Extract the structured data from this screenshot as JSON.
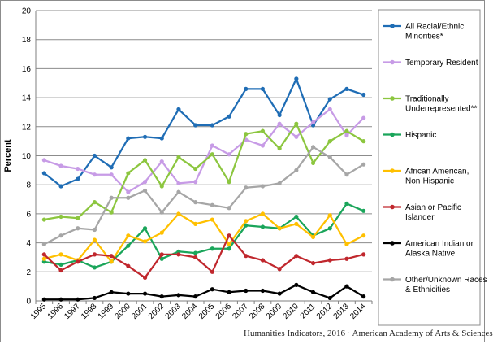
{
  "source_note": "Humanities Indicators, 2016 · American Academy of Arts & Sciences",
  "chart_data": {
    "type": "line",
    "title": "",
    "xlabel": "",
    "ylabel": "Percent",
    "ylim": [
      0,
      20
    ],
    "yticks": [
      0,
      2,
      4,
      6,
      8,
      10,
      12,
      14,
      16,
      18,
      20
    ],
    "grid": true,
    "legend_position": "right",
    "x": [
      "1995",
      "1996",
      "1997",
      "1998",
      "1999",
      "2000",
      "2001",
      "2002",
      "2003",
      "2004",
      "2005",
      "2006",
      "2007",
      "2008",
      "2009",
      "2010",
      "2011",
      "2012",
      "2013",
      "2014"
    ],
    "series": [
      {
        "name": "All Racial/Ethnic Minorities*",
        "color": "#1f6db5",
        "values": [
          8.8,
          7.9,
          8.4,
          10.0,
          9.2,
          11.2,
          11.3,
          11.2,
          13.2,
          12.1,
          12.1,
          12.7,
          14.6,
          14.6,
          12.8,
          15.3,
          12.1,
          13.9,
          14.6,
          14.2
        ]
      },
      {
        "name": "Temporary Resident",
        "color": "#c79be6",
        "values": [
          9.7,
          9.3,
          9.1,
          8.7,
          8.7,
          7.5,
          8.2,
          9.6,
          8.1,
          8.2,
          10.7,
          10.1,
          11.1,
          10.7,
          12.2,
          11.3,
          12.3,
          13.2,
          11.4,
          12.6
        ]
      },
      {
        "name": "Traditionally Underrepresented**",
        "color": "#8cc63f",
        "values": [
          5.6,
          5.8,
          5.7,
          6.8,
          6.1,
          8.8,
          9.7,
          7.9,
          9.9,
          9.1,
          10.1,
          8.2,
          11.5,
          11.7,
          10.5,
          12.2,
          9.5,
          11.0,
          11.7,
          11.0
        ]
      },
      {
        "name": "Hispanic",
        "color": "#1aa55a",
        "values": [
          2.7,
          2.5,
          2.8,
          2.3,
          2.7,
          3.8,
          5.0,
          2.9,
          3.4,
          3.3,
          3.6,
          3.6,
          5.2,
          5.1,
          5.0,
          5.8,
          4.5,
          5.0,
          6.7,
          6.2
        ]
      },
      {
        "name": "African American, Non-Hispanic",
        "color": "#ffc000",
        "values": [
          2.9,
          3.2,
          2.8,
          4.2,
          2.7,
          4.5,
          4.1,
          4.7,
          6.0,
          5.3,
          5.6,
          3.9,
          5.5,
          6.0,
          5.0,
          5.3,
          4.4,
          5.9,
          3.9,
          4.5
        ]
      },
      {
        "name": "Asian or Pacific Islander",
        "color": "#c0272d",
        "values": [
          3.2,
          2.1,
          2.7,
          3.2,
          3.1,
          2.4,
          1.6,
          3.2,
          3.2,
          3.0,
          2.0,
          4.5,
          3.1,
          2.8,
          2.2,
          3.1,
          2.6,
          2.8,
          2.9,
          3.2
        ]
      },
      {
        "name": "American Indian or Alaska Native",
        "color": "#000000",
        "values": [
          0.1,
          0.1,
          0.1,
          0.2,
          0.6,
          0.5,
          0.5,
          0.3,
          0.4,
          0.3,
          0.8,
          0.6,
          0.7,
          0.7,
          0.5,
          1.1,
          0.6,
          0.2,
          1.0,
          0.3
        ]
      },
      {
        "name": "Other/Unknown Races & Ethnicities",
        "color": "#a6a6a6",
        "values": [
          3.9,
          4.5,
          5.0,
          4.9,
          7.1,
          7.1,
          7.6,
          6.1,
          7.5,
          6.8,
          6.6,
          6.4,
          7.8,
          7.9,
          8.1,
          9.0,
          10.6,
          9.9,
          8.7,
          9.4
        ]
      }
    ]
  }
}
